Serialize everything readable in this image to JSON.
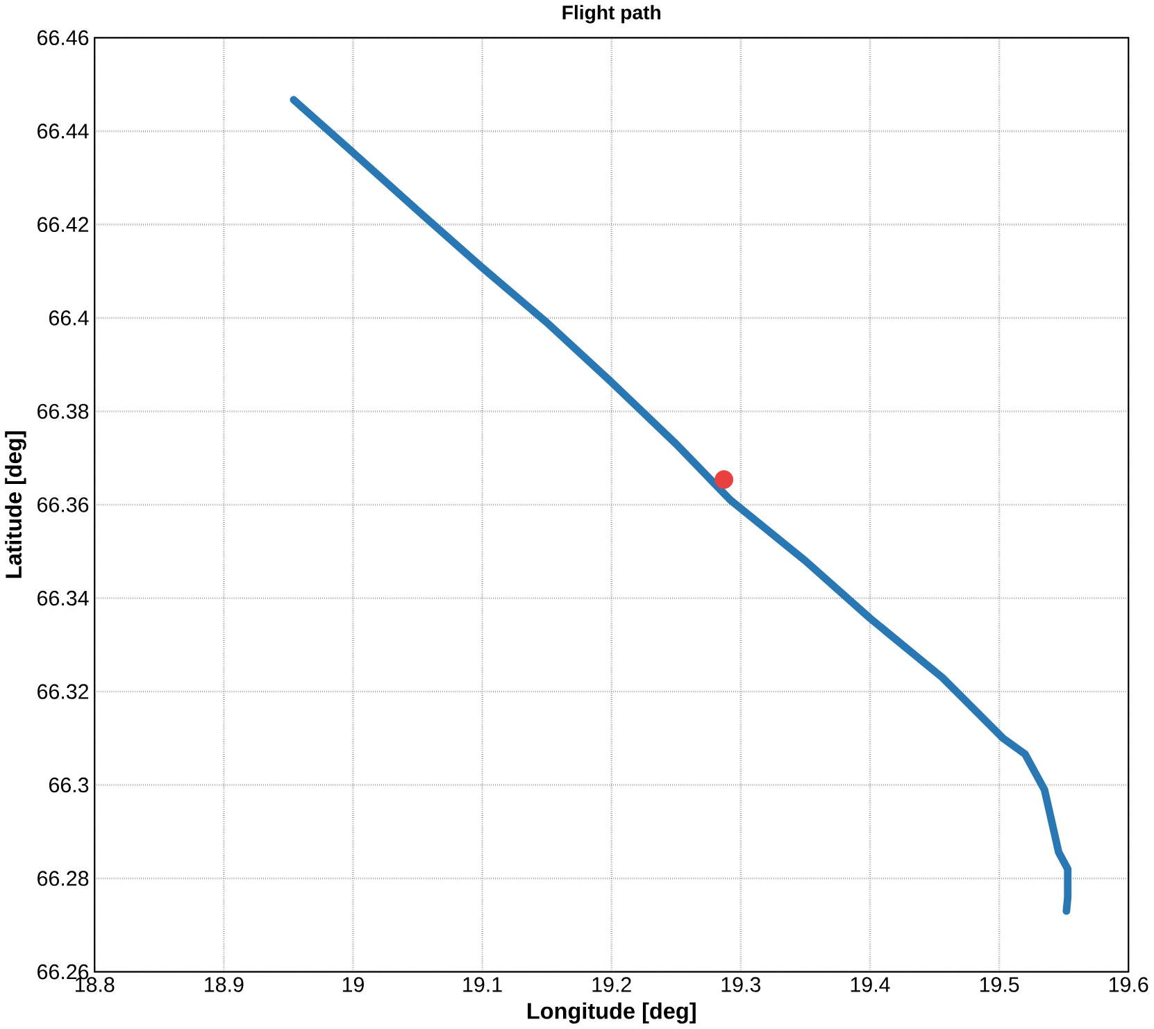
{
  "chart_data": {
    "type": "line",
    "title": "Flight path",
    "xlabel": "Longitude [deg]",
    "ylabel": "Latitude [deg]",
    "xlim": [
      18.8,
      19.6
    ],
    "xticks": [
      18.8,
      18.9,
      19,
      19.1,
      19.2,
      19.3,
      19.4,
      19.5,
      19.6
    ],
    "ylim": [
      66.26,
      66.46
    ],
    "yticks": [
      66.26,
      66.28,
      66.3,
      66.32,
      66.34,
      66.36,
      66.38,
      66.4,
      66.42,
      66.44,
      66.46
    ],
    "grid": true,
    "line_style": "solid",
    "series": [
      {
        "color": "#2a78b3",
        "x": [
          18.954,
          19.0,
          19.05,
          19.099,
          19.15,
          19.199,
          19.25,
          19.292,
          19.35,
          19.4,
          19.456,
          19.503,
          19.52,
          19.535,
          19.546,
          19.553,
          19.553,
          19.552
        ],
        "values": [
          66.4467,
          66.4354,
          66.423,
          66.411,
          66.399,
          66.3865,
          66.373,
          66.361,
          66.348,
          66.3357,
          66.323,
          66.31,
          66.3066,
          66.299,
          66.2856,
          66.282,
          66.276,
          66.273
        ]
      },
      {
        "type": "scatter",
        "color": "#e8413f",
        "x": [
          19.287
        ],
        "values": [
          66.3654
        ]
      }
    ]
  }
}
